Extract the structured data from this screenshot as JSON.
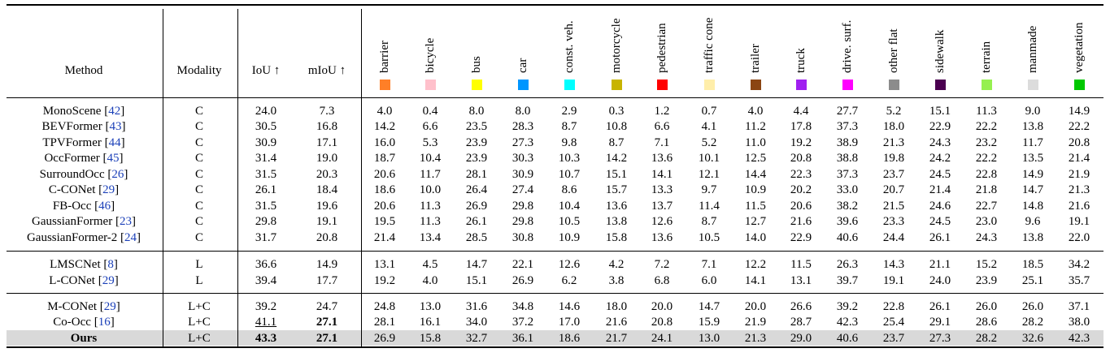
{
  "header": {
    "method": "Method",
    "modality": "Modality",
    "iou": "IoU ↑",
    "miou": "mIoU ↑"
  },
  "classes": [
    {
      "name": "barrier",
      "color": "#ff7f27"
    },
    {
      "name": "bicycle",
      "color": "#ffc0cb"
    },
    {
      "name": "bus",
      "color": "#ffff00"
    },
    {
      "name": "car",
      "color": "#0096ff"
    },
    {
      "name": "const. veh.",
      "color": "#00ffff"
    },
    {
      "name": "motorcycle",
      "color": "#c8b400"
    },
    {
      "name": "pedestrian",
      "color": "#ff0000"
    },
    {
      "name": "traffic cone",
      "color": "#ffeeaa"
    },
    {
      "name": "trailer",
      "color": "#8b4513"
    },
    {
      "name": "truck",
      "color": "#a020f0"
    },
    {
      "name": "drive. surf.",
      "color": "#ff00ff"
    },
    {
      "name": "other flat",
      "color": "#8c8c8c"
    },
    {
      "name": "sidewalk",
      "color": "#4b0050"
    },
    {
      "name": "terrain",
      "color": "#96f050"
    },
    {
      "name": "manmade",
      "color": "#dcdcdc"
    },
    {
      "name": "vegetation",
      "color": "#00c800"
    }
  ],
  "rows": [
    {
      "method": "MonoScene",
      "cite": "42",
      "modality": "C",
      "iou": "24.0",
      "miou": "7.3",
      "values": [
        "4.0",
        "0.4",
        "8.0",
        "8.0",
        "2.9",
        "0.3",
        "1.2",
        "0.7",
        "4.0",
        "4.4",
        "27.7",
        "5.2",
        "15.1",
        "11.3",
        "9.0",
        "14.9"
      ]
    },
    {
      "method": "BEVFormer",
      "cite": "43",
      "modality": "C",
      "iou": "30.5",
      "miou": "16.8",
      "values": [
        "14.2",
        "6.6",
        "23.5",
        "28.3",
        "8.7",
        "10.8",
        "6.6",
        "4.1",
        "11.2",
        "17.8",
        "37.3",
        "18.0",
        "22.9",
        "22.2",
        "13.8",
        "22.2"
      ]
    },
    {
      "method": "TPVFormer",
      "cite": "44",
      "modality": "C",
      "iou": "30.9",
      "miou": "17.1",
      "values": [
        "16.0",
        "5.3",
        "23.9",
        "27.3",
        "9.8",
        "8.7",
        "7.1",
        "5.2",
        "11.0",
        "19.2",
        "38.9",
        "21.3",
        "24.3",
        "23.2",
        "11.7",
        "20.8"
      ]
    },
    {
      "method": "OccFormer",
      "cite": "45",
      "modality": "C",
      "iou": "31.4",
      "miou": "19.0",
      "values": [
        "18.7",
        "10.4",
        "23.9",
        "30.3",
        "10.3",
        "14.2",
        "13.6",
        "10.1",
        "12.5",
        "20.8",
        "38.8",
        "19.8",
        "24.2",
        "22.2",
        "13.5",
        "21.4"
      ]
    },
    {
      "method": "SurroundOcc",
      "cite": "26",
      "modality": "C",
      "iou": "31.5",
      "miou": "20.3",
      "values": [
        "20.6",
        "11.7",
        "28.1",
        "30.9",
        "10.7",
        "15.1",
        "14.1",
        "12.1",
        "14.4",
        "22.3",
        "37.3",
        "23.7",
        "24.5",
        "22.8",
        "14.9",
        "21.9"
      ]
    },
    {
      "method": "C-CONet",
      "cite": "29",
      "modality": "C",
      "iou": "26.1",
      "miou": "18.4",
      "values": [
        "18.6",
        "10.0",
        "26.4",
        "27.4",
        "8.6",
        "15.7",
        "13.3",
        "9.7",
        "10.9",
        "20.2",
        "33.0",
        "20.7",
        "21.4",
        "21.8",
        "14.7",
        "21.3"
      ]
    },
    {
      "method": "FB-Occ",
      "cite": "46",
      "modality": "C",
      "iou": "31.5",
      "miou": "19.6",
      "values": [
        "20.6",
        "11.3",
        "26.9",
        "29.8",
        "10.4",
        "13.6",
        "13.7",
        "11.4",
        "11.5",
        "20.6",
        "38.2",
        "21.5",
        "24.6",
        "22.7",
        "14.8",
        "21.6"
      ]
    },
    {
      "method": "GaussianFormer",
      "cite": "23",
      "modality": "C",
      "iou": "29.8",
      "miou": "19.1",
      "values": [
        "19.5",
        "11.3",
        "26.1",
        "29.8",
        "10.5",
        "13.8",
        "12.6",
        "8.7",
        "12.7",
        "21.6",
        "39.6",
        "23.3",
        "24.5",
        "23.0",
        "9.6",
        "19.1"
      ]
    },
    {
      "method": "GaussianFormer-2",
      "cite": "24",
      "modality": "C",
      "iou": "31.7",
      "miou": "20.8",
      "values": [
        "21.4",
        "13.4",
        "28.5",
        "30.8",
        "10.9",
        "15.8",
        "13.6",
        "10.5",
        "14.0",
        "22.9",
        "40.6",
        "24.4",
        "26.1",
        "24.3",
        "13.8",
        "22.0"
      ]
    },
    {
      "method": "LMSCNet",
      "cite": "8",
      "modality": "L",
      "iou": "36.6",
      "miou": "14.9",
      "values": [
        "13.1",
        "4.5",
        "14.7",
        "22.1",
        "12.6",
        "4.2",
        "7.2",
        "7.1",
        "12.2",
        "11.5",
        "26.3",
        "14.3",
        "21.1",
        "15.2",
        "18.5",
        "34.2"
      ]
    },
    {
      "method": "L-CONet",
      "cite": "29",
      "modality": "L",
      "iou": "39.4",
      "miou": "17.7",
      "values": [
        "19.2",
        "4.0",
        "15.1",
        "26.9",
        "6.2",
        "3.8",
        "6.8",
        "6.0",
        "14.1",
        "13.1",
        "39.7",
        "19.1",
        "24.0",
        "23.9",
        "25.1",
        "35.7"
      ]
    },
    {
      "method": "M-CONet",
      "cite": "29",
      "modality": "L+C",
      "iou": "39.2",
      "miou": "24.7",
      "values": [
        "24.8",
        "13.0",
        "31.6",
        "34.8",
        "14.6",
        "18.0",
        "20.0",
        "14.7",
        "20.0",
        "26.6",
        "39.2",
        "22.8",
        "26.1",
        "26.0",
        "26.0",
        "37.1"
      ]
    },
    {
      "method": "Co-Occ",
      "cite": "16",
      "modality": "L+C",
      "iou": "41.1",
      "miou": "27.1",
      "values": [
        "28.1",
        "16.1",
        "34.0",
        "37.2",
        "17.0",
        "21.6",
        "20.8",
        "15.9",
        "21.9",
        "28.7",
        "42.3",
        "25.4",
        "29.1",
        "28.6",
        "28.2",
        "38.0"
      ]
    },
    {
      "method": "Ours",
      "cite": "",
      "modality": "L+C",
      "iou": "43.3",
      "miou": "27.1",
      "values": [
        "26.9",
        "15.8",
        "32.7",
        "36.1",
        "18.6",
        "21.7",
        "24.1",
        "13.0",
        "21.3",
        "29.0",
        "40.6",
        "23.7",
        "27.3",
        "28.2",
        "32.6",
        "42.3"
      ]
    }
  ]
}
